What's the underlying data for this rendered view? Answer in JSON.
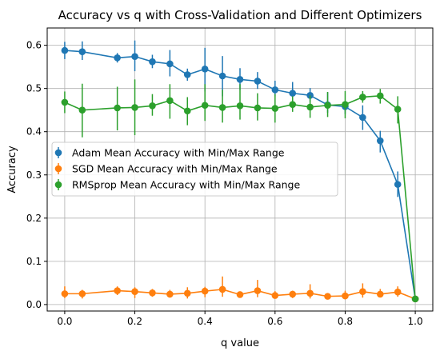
{
  "chart_data": {
    "type": "line",
    "title": "Accuracy vs q with Cross-Validation and Different Optimizers",
    "xlabel": "q value",
    "ylabel": "Accuracy",
    "xlim": [
      -0.05,
      1.05
    ],
    "ylim": [
      -0.015,
      0.64
    ],
    "xticks": [
      0.0,
      0.2,
      0.4,
      0.6,
      0.8,
      1.0
    ],
    "xtick_labels": [
      "0.0",
      "0.2",
      "0.4",
      "0.6",
      "0.8",
      "1.0"
    ],
    "yticks": [
      0.0,
      0.1,
      0.2,
      0.3,
      0.4,
      0.5,
      0.6
    ],
    "ytick_labels": [
      "0.0",
      "0.1",
      "0.2",
      "0.3",
      "0.4",
      "0.5",
      "0.6"
    ],
    "grid": true,
    "legend_position": "center-left",
    "x": [
      0.0,
      0.05,
      0.15,
      0.2,
      0.25,
      0.3,
      0.35,
      0.4,
      0.45,
      0.5,
      0.55,
      0.6,
      0.65,
      0.7,
      0.75,
      0.8,
      0.85,
      0.9,
      0.95,
      1.0
    ],
    "series": [
      {
        "name": "Adam Mean Accuracy with Min/Max Range",
        "color": "#1f77b4",
        "values": [
          0.588,
          0.585,
          0.571,
          0.574,
          0.562,
          0.557,
          0.532,
          0.545,
          0.529,
          0.521,
          0.517,
          0.497,
          0.489,
          0.484,
          0.462,
          0.458,
          0.433,
          0.379,
          0.278,
          0.013
        ],
        "min": [
          0.568,
          0.566,
          0.56,
          0.54,
          0.547,
          0.528,
          0.518,
          0.493,
          0.482,
          0.497,
          0.499,
          0.482,
          0.467,
          0.469,
          0.444,
          0.441,
          0.404,
          0.352,
          0.249,
          0.011
        ],
        "max": [
          0.608,
          0.609,
          0.582,
          0.611,
          0.578,
          0.589,
          0.546,
          0.594,
          0.575,
          0.547,
          0.538,
          0.518,
          0.515,
          0.501,
          0.491,
          0.471,
          0.461,
          0.402,
          0.308,
          0.015
        ]
      },
      {
        "name": "SGD Mean Accuracy with Min/Max Range",
        "color": "#ff7f0e",
        "values": [
          0.025,
          0.025,
          0.032,
          0.03,
          0.027,
          0.024,
          0.026,
          0.031,
          0.035,
          0.023,
          0.032,
          0.021,
          0.024,
          0.026,
          0.019,
          0.02,
          0.03,
          0.024,
          0.029,
          0.013
        ],
        "min": [
          0.015,
          0.014,
          0.022,
          0.015,
          0.018,
          0.016,
          0.014,
          0.017,
          0.018,
          0.021,
          0.017,
          0.018,
          0.015,
          0.014,
          0.012,
          0.012,
          0.016,
          0.018,
          0.018,
          0.011
        ],
        "max": [
          0.042,
          0.034,
          0.042,
          0.04,
          0.036,
          0.034,
          0.04,
          0.041,
          0.065,
          0.028,
          0.057,
          0.031,
          0.032,
          0.047,
          0.026,
          0.032,
          0.049,
          0.036,
          0.042,
          0.015
        ]
      },
      {
        "name": "RMSprop Mean Accuracy with Min/Max Range",
        "color": "#2ca02c",
        "values": [
          0.468,
          0.45,
          0.455,
          0.456,
          0.46,
          0.472,
          0.448,
          0.461,
          0.456,
          0.46,
          0.455,
          0.454,
          0.463,
          0.457,
          0.461,
          0.463,
          0.48,
          0.483,
          0.452,
          0.013
        ],
        "min": [
          0.443,
          0.387,
          0.403,
          0.392,
          0.437,
          0.43,
          0.415,
          0.425,
          0.421,
          0.428,
          0.426,
          0.421,
          0.446,
          0.432,
          0.434,
          0.431,
          0.467,
          0.465,
          0.419,
          0.011
        ],
        "max": [
          0.493,
          0.511,
          0.504,
          0.521,
          0.487,
          0.51,
          0.48,
          0.51,
          0.497,
          0.51,
          0.489,
          0.487,
          0.482,
          0.484,
          0.492,
          0.494,
          0.494,
          0.499,
          0.482,
          0.015
        ]
      }
    ]
  }
}
